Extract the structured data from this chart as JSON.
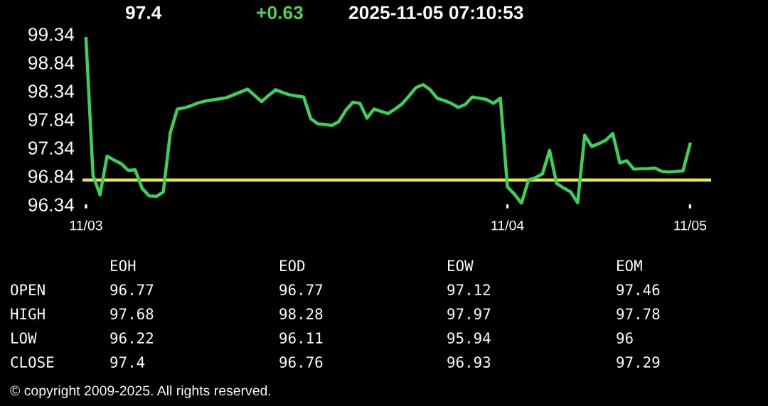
{
  "chart_data": [
    {
      "type": "line",
      "title": "97.4",
      "annotations": [
        "+0.63",
        "2025-11-05 07:10:53"
      ],
      "categories": [
        "11/03",
        null,
        null,
        null,
        null,
        null,
        null,
        null,
        null,
        null,
        null,
        null,
        null,
        null,
        null,
        null,
        null,
        null,
        null,
        null,
        null,
        null,
        null,
        null,
        null,
        null,
        null,
        null,
        null,
        null,
        null,
        null,
        null,
        null,
        null,
        null,
        null,
        null,
        null,
        null,
        null,
        null,
        null,
        null,
        null,
        null,
        null,
        null,
        null,
        null,
        null,
        null,
        null,
        null,
        null,
        null,
        null,
        null,
        null,
        null,
        "11/04",
        null,
        null,
        null,
        null,
        null,
        null,
        null,
        null,
        null,
        null,
        null,
        null,
        null,
        null,
        null,
        null,
        null,
        null,
        null,
        null,
        null,
        null,
        null,
        null,
        null,
        "11/05"
      ],
      "ylim": [
        96.34,
        99.34
      ],
      "yticks": [
        96.34,
        96.84,
        97.34,
        97.84,
        98.34,
        98.84,
        99.34
      ],
      "ref_lines": [
        {
          "axis": "y",
          "value": 96.77,
          "color": "#e8e84a"
        }
      ],
      "series": [
        {
          "color": "#3cd25a",
          "values": [
            99.26,
            96.85,
            96.51,
            97.19,
            97.12,
            97.06,
            96.94,
            96.95,
            96.62,
            96.49,
            96.48,
            96.56,
            97.6,
            98.02,
            98.04,
            98.08,
            98.13,
            98.16,
            98.18,
            98.2,
            98.22,
            98.27,
            98.32,
            98.37,
            98.26,
            98.15,
            98.26,
            98.36,
            98.31,
            98.27,
            98.25,
            98.23,
            97.85,
            97.76,
            97.75,
            97.73,
            97.8,
            98.0,
            98.14,
            98.12,
            97.86,
            98.02,
            97.98,
            97.94,
            98.02,
            98.11,
            98.25,
            98.4,
            98.45,
            98.36,
            98.21,
            98.17,
            98.12,
            98.05,
            98.1,
            98.23,
            98.21,
            98.19,
            98.12,
            98.21,
            96.65,
            96.52,
            96.36,
            96.77,
            96.81,
            96.88,
            97.29,
            96.71,
            96.63,
            96.56,
            96.37,
            97.56,
            97.36,
            97.41,
            97.47,
            97.59,
            97.07,
            97.11,
            96.96,
            96.97,
            96.97,
            96.98,
            96.92,
            96.91,
            96.92,
            96.93,
            97.4
          ]
        }
      ]
    },
    {
      "type": "other",
      "categories": [
        "EOH",
        "EOD",
        "EOW",
        "EOM"
      ],
      "y_categories": [
        "OPEN",
        "HIGH",
        "LOW",
        "CLOSE"
      ],
      "cell_labels": [
        [
          "96.77",
          "96.77",
          "97.12",
          "97.46"
        ],
        [
          "97.68",
          "98.28",
          "97.97",
          "97.78"
        ],
        [
          "96.22",
          "96.11",
          "95.94",
          "96"
        ],
        [
          "97.4",
          "96.76",
          "96.93",
          "97.29"
        ]
      ],
      "annotations": [
        "© copyright 2009-2025. All rights reserved."
      ]
    }
  ]
}
